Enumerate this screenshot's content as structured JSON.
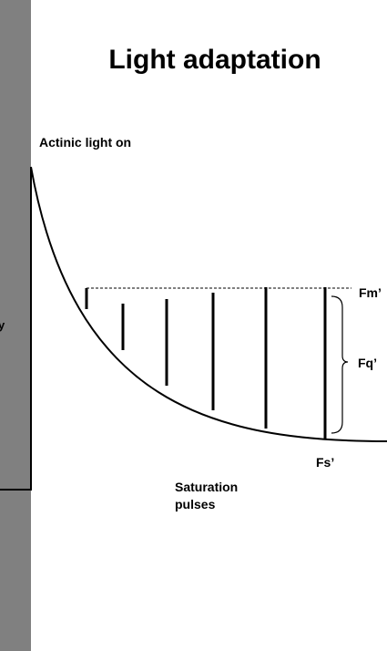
{
  "title": "Light adaptation",
  "labels": {
    "actinic": "Actinic light on",
    "fm_prime": "Fm’",
    "fq_prime": "Fq’",
    "fs_prime": "Fs’",
    "saturation_line1": "Saturation",
    "saturation_line2": "pulses",
    "clipped_side_glyph": "y"
  },
  "colors": {
    "side_bar": "#808080",
    "ink": "#000000",
    "background": "#ffffff"
  },
  "saturation_pulses": {
    "count": 6
  }
}
